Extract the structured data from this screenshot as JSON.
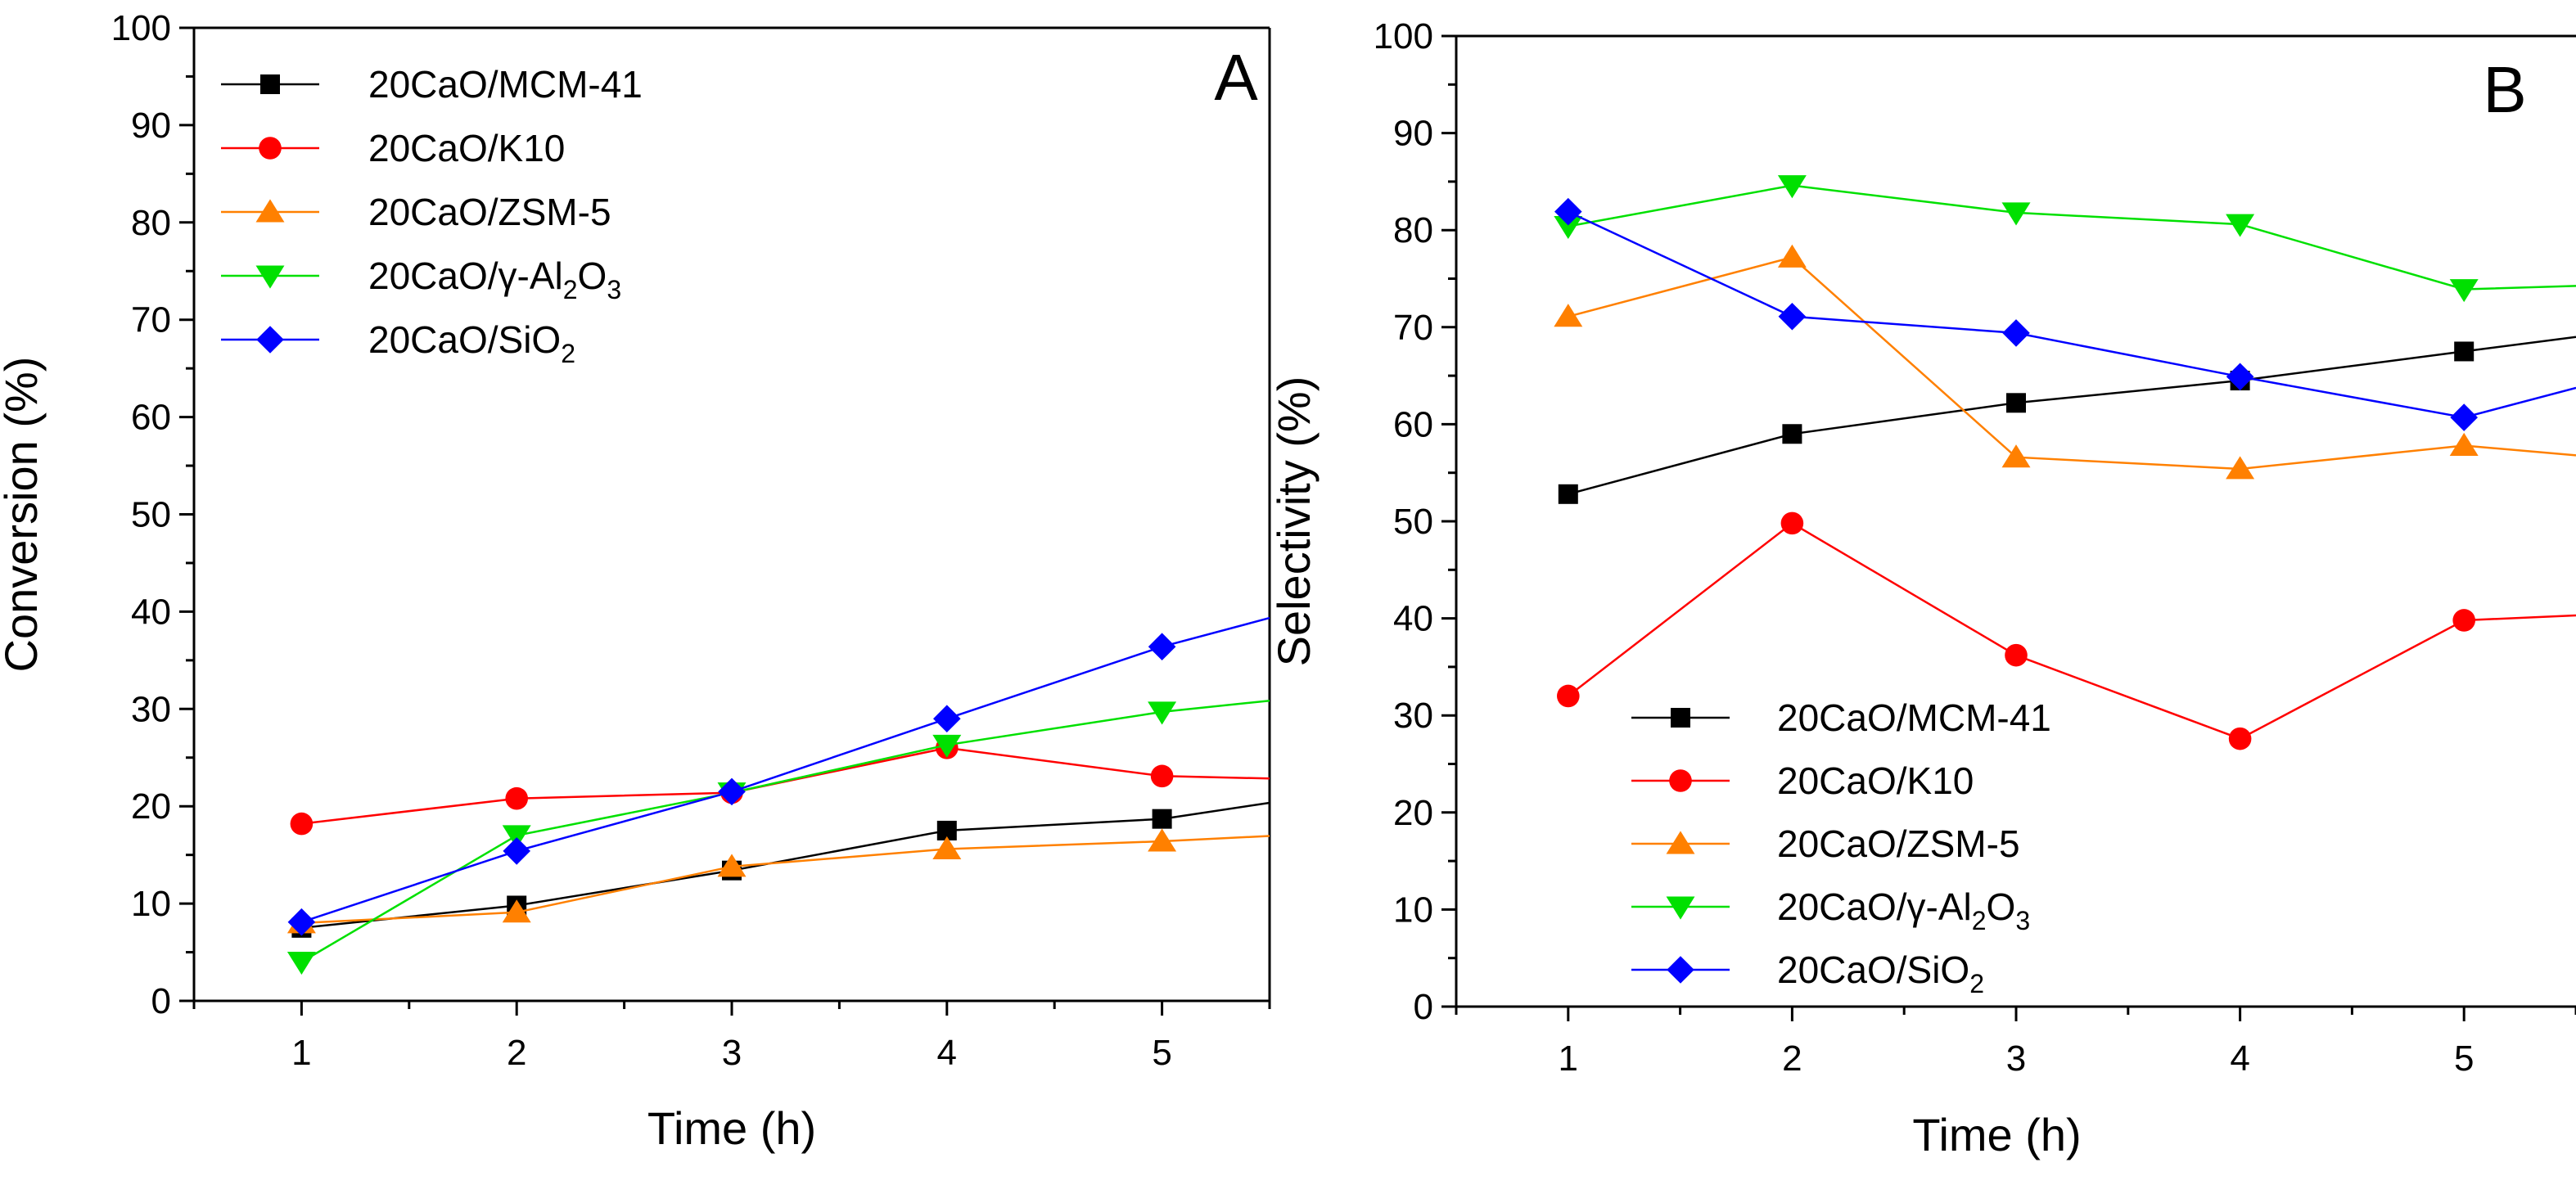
{
  "chart_data": [
    {
      "type": "line",
      "panel_label": "A",
      "xlabel": "Time (h)",
      "ylabel": "Conversion (%)",
      "x": [
        1,
        2,
        3,
        4,
        5
      ],
      "xlim": [
        0.5,
        5.5
      ],
      "ylim": [
        0,
        100
      ],
      "xticks": [
        "1",
        "2",
        "3",
        "4",
        "5"
      ],
      "yticks": [
        "0",
        "10",
        "20",
        "30",
        "40",
        "50",
        "60",
        "70",
        "80",
        "90",
        "100"
      ],
      "legend_position": "top-left",
      "series": [
        {
          "name": "20CaO/MCM-41",
          "legend": {
            "main": "20CaO/MCM-41"
          },
          "color": "#000000",
          "marker": "square",
          "values": [
            7.5,
            9.8,
            13.4,
            17.5,
            18.7
          ],
          "tail": 22
        },
        {
          "name": "20CaO/K10",
          "legend": {
            "main": "20CaO/K10"
          },
          "color": "#ff0000",
          "marker": "circle",
          "values": [
            18.2,
            20.8,
            21.4,
            26.0,
            23.1
          ],
          "tail": 22.6
        },
        {
          "name": "20CaO/ZSM-5",
          "legend": {
            "main": "20CaO/ZSM-5"
          },
          "color": "#ff8000",
          "marker": "triangle-up",
          "values": [
            8.0,
            9.1,
            13.8,
            15.6,
            16.4
          ],
          "tail": 17.5
        },
        {
          "name": "20CaO/γ-Al2O3",
          "legend": {
            "main": "20CaO/γ-Al",
            "sub1": "2",
            "mid": "O",
            "sub2": "3"
          },
          "color": "#00e000",
          "marker": "triangle-down",
          "values": [
            4.0,
            17.0,
            21.4,
            26.3,
            29.7
          ],
          "tail": 32
        },
        {
          "name": "20CaO/SiO2",
          "legend": {
            "main": "20CaO/SiO",
            "sub1": "2"
          },
          "color": "#0000ff",
          "marker": "diamond",
          "values": [
            8.1,
            15.4,
            21.5,
            29.0,
            36.4
          ],
          "tail": 42.3
        }
      ]
    },
    {
      "type": "line",
      "panel_label": "B",
      "xlabel": "Time (h)",
      "ylabel": "Selectivity (%)",
      "x": [
        1,
        2,
        3,
        4,
        5
      ],
      "xlim": [
        0.5,
        5.5
      ],
      "ylim": [
        0,
        100
      ],
      "xticks": [
        "1",
        "2",
        "3",
        "4",
        "5"
      ],
      "yticks": [
        "0",
        "10",
        "20",
        "30",
        "40",
        "50",
        "60",
        "70",
        "80",
        "90",
        "100"
      ],
      "legend_position": "bottom-left",
      "series": [
        {
          "name": "20CaO/MCM-41",
          "legend": {
            "main": "20CaO/MCM-41"
          },
          "color": "#000000",
          "marker": "square",
          "values": [
            52.8,
            59.0,
            62.2,
            64.5,
            67.5
          ],
          "tail": 70.5
        },
        {
          "name": "20CaO/K10",
          "legend": {
            "main": "20CaO/K10"
          },
          "color": "#ff0000",
          "marker": "circle",
          "values": [
            32.0,
            49.8,
            36.2,
            27.6,
            39.8
          ],
          "tail": 40.8
        },
        {
          "name": "20CaO/ZSM-5",
          "legend": {
            "main": "20CaO/ZSM-5"
          },
          "color": "#ff8000",
          "marker": "triangle-up",
          "values": [
            71.1,
            77.2,
            56.6,
            55.4,
            57.8
          ],
          "tail": 55.8
        },
        {
          "name": "20CaO/γ-Al2O3",
          "legend": {
            "main": "20CaO/γ-Al",
            "sub1": "2",
            "mid": "O",
            "sub2": "3"
          },
          "color": "#00e000",
          "marker": "triangle-down",
          "values": [
            80.4,
            84.6,
            81.8,
            80.6,
            73.9
          ],
          "tail": 74.6
        },
        {
          "name": "20CaO/SiO2",
          "legend": {
            "main": "20CaO/SiO",
            "sub1": "2"
          },
          "color": "#0000ff",
          "marker": "diamond",
          "values": [
            81.9,
            71.1,
            69.4,
            64.9,
            60.7
          ],
          "tail": 66.8
        }
      ]
    }
  ]
}
